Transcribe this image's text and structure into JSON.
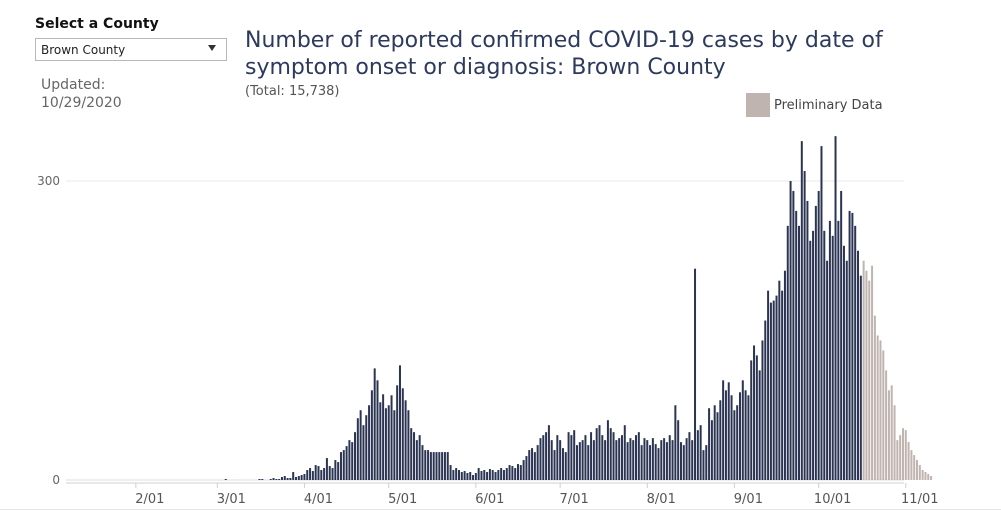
{
  "filter": {
    "label": "Select a County",
    "selected": "Brown County"
  },
  "updated": {
    "label": "Updated:",
    "date": "10/29/2020"
  },
  "header": {
    "title": "Number of reported confirmed COVID-19 cases by date of symptom onset or diagnosis: Brown County",
    "subtitle": "(Total: 15,738)"
  },
  "legend": {
    "preliminary_label": "Preliminary Data",
    "preliminary_color": "#bfb4af"
  },
  "colors": {
    "confirmed": "#2b3553",
    "preliminary": "#bfb4af",
    "gridline": "#e8e8e8"
  },
  "chart_data": {
    "type": "bar",
    "title": "Number of reported confirmed COVID-19 cases by date of symptom onset or diagnosis: Brown County",
    "subtitle": "(Total: 15,738)",
    "xlabel": "",
    "ylabel": "",
    "ylim": [
      0,
      360
    ],
    "y_ticks": [
      0,
      300
    ],
    "x_tick_labels": [
      "2/01",
      "3/01",
      "4/01",
      "5/01",
      "6/01",
      "7/01",
      "8/01",
      "9/01",
      "10/01",
      "11/01"
    ],
    "start_date": "2020-01-18",
    "preliminary_start_date": "2020-10-17",
    "series": [
      {
        "name": "Cases",
        "values": [
          0,
          0,
          0,
          0,
          0,
          0,
          0,
          0,
          0,
          0,
          0,
          0,
          0,
          0,
          0,
          0,
          0,
          0,
          0,
          0,
          0,
          0,
          0,
          0,
          0,
          0,
          0,
          0,
          0,
          0,
          0,
          0,
          0,
          0,
          0,
          0,
          0,
          0,
          0,
          0,
          0,
          0,
          0,
          0,
          0,
          0,
          1,
          0,
          0,
          0,
          0,
          0,
          0,
          0,
          0,
          0,
          0,
          0,
          1,
          1,
          0,
          0,
          1,
          2,
          1,
          1,
          3,
          4,
          2,
          2,
          8,
          3,
          4,
          5,
          6,
          10,
          12,
          9,
          15,
          14,
          10,
          12,
          22,
          14,
          12,
          20,
          18,
          28,
          30,
          34,
          40,
          38,
          48,
          62,
          70,
          55,
          65,
          75,
          90,
          112,
          100,
          78,
          86,
          72,
          75,
          85,
          70,
          95,
          115,
          92,
          80,
          70,
          52,
          48,
          40,
          45,
          35,
          30,
          30,
          28,
          28,
          28,
          28,
          28,
          28,
          28,
          15,
          10,
          12,
          10,
          8,
          9,
          7,
          8,
          5,
          7,
          12,
          9,
          10,
          8,
          11,
          10,
          8,
          10,
          12,
          10,
          12,
          15,
          14,
          12,
          16,
          15,
          20,
          24,
          30,
          32,
          28,
          35,
          42,
          45,
          48,
          55,
          40,
          30,
          45,
          40,
          32,
          28,
          48,
          45,
          50,
          35,
          38,
          40,
          45,
          35,
          48,
          40,
          52,
          55,
          45,
          40,
          60,
          52,
          48,
          40,
          42,
          45,
          55,
          38,
          42,
          40,
          45,
          48,
          35,
          42,
          40,
          35,
          42,
          36,
          32,
          40,
          42,
          38,
          45,
          40,
          75,
          60,
          38,
          35,
          42,
          48,
          40,
          212,
          50,
          55,
          30,
          35,
          72,
          60,
          75,
          68,
          80,
          100,
          90,
          98,
          85,
          70,
          75,
          88,
          100,
          90,
          85,
          120,
          135,
          125,
          110,
          140,
          160,
          190,
          178,
          180,
          185,
          200,
          190,
          210,
          255,
          300,
          290,
          270,
          255,
          340,
          310,
          280,
          240,
          250,
          275,
          290,
          335,
          250,
          220,
          260,
          245,
          345,
          260,
          290,
          235,
          220,
          270,
          268,
          255,
          230,
          205,
          220,
          210,
          200,
          215,
          165,
          145,
          140,
          130,
          110,
          90,
          95,
          75,
          40,
          45,
          52,
          50,
          38,
          30,
          25,
          20,
          15,
          10,
          8,
          6,
          4
        ]
      }
    ]
  }
}
